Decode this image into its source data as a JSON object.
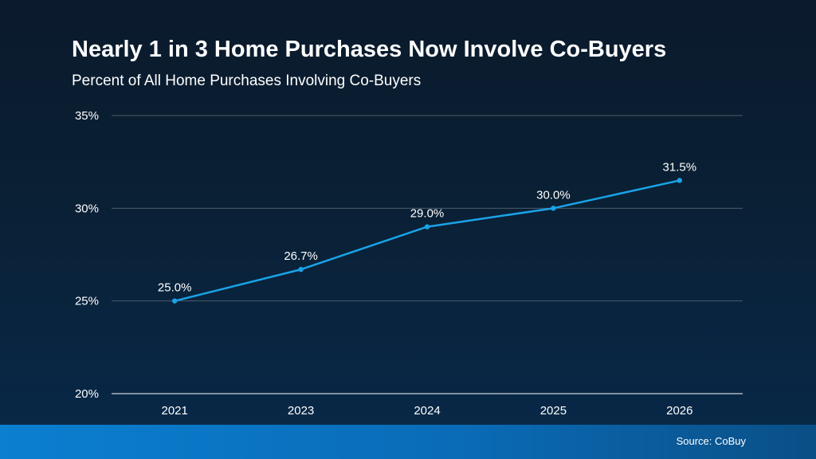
{
  "title": "Nearly 1 in 3 Home Purchases Now Involve Co-Buyers",
  "subtitle": "Percent of All Home Purchases Involving Co-Buyers",
  "source": "Source: CoBuy",
  "colors": {
    "line": "#1aa3e8",
    "gridline": "#4a5b6c",
    "text": "#ffffff",
    "footer": "#0b7fd0"
  },
  "chart_data": {
    "type": "line",
    "categories": [
      "2021",
      "2023",
      "2024",
      "2025",
      "2026"
    ],
    "values": [
      25.0,
      26.7,
      29.0,
      30.0,
      31.5
    ],
    "data_labels": [
      "25.0%",
      "26.7%",
      "29.0%",
      "30.0%",
      "31.5%"
    ],
    "y_ticks": [
      20,
      25,
      30,
      35
    ],
    "y_tick_labels": [
      "20%",
      "25%",
      "30%",
      "35%"
    ],
    "ylim": [
      20,
      35
    ],
    "grid": true
  }
}
